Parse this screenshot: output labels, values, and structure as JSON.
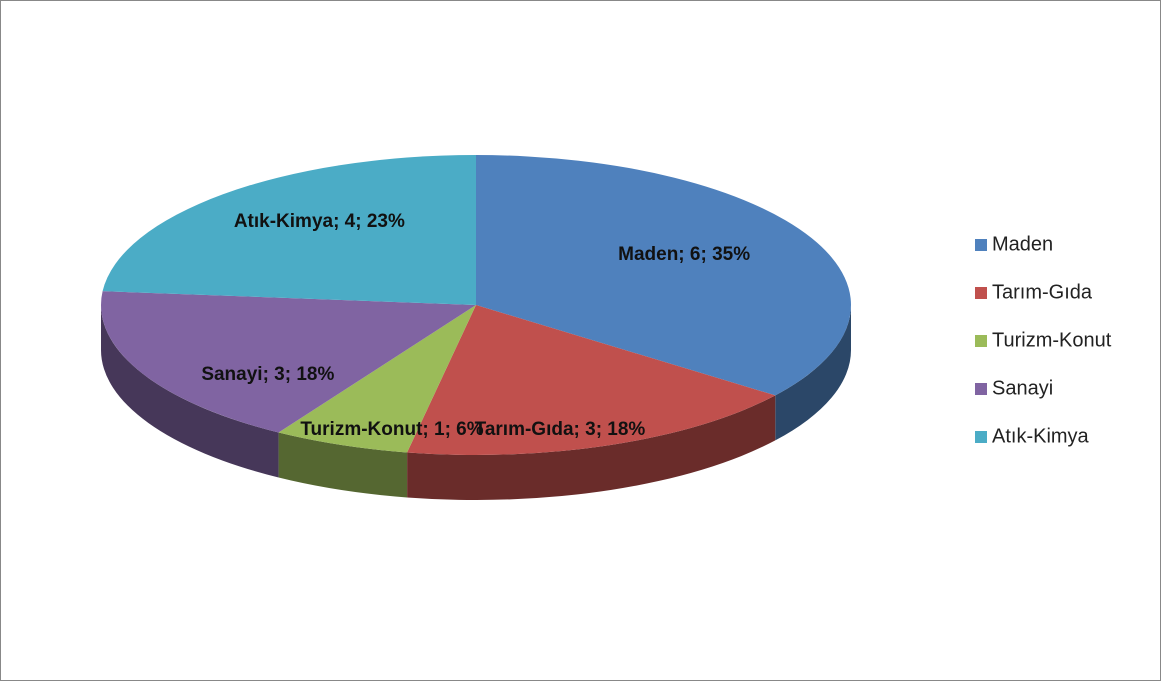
{
  "chart_data": {
    "type": "pie",
    "categories": [
      "Maden",
      "Tarım-Gıda",
      "Turizm-Konut",
      "Sanayi",
      "Atık-Kimya"
    ],
    "values": [
      6,
      3,
      1,
      3,
      4
    ],
    "value_labels": [
      "Maden; 6; 35%",
      "Tarım-Gıda; 3; 18%",
      "Turizm-Konut; 1; 6%",
      "Sanayi; 3; 18%",
      "Atık-Kimya; 4; 23%"
    ],
    "colors": [
      "#4f81bd",
      "#c0504d",
      "#9bbb59",
      "#8064a2",
      "#4bacc6"
    ],
    "legend": "right"
  }
}
